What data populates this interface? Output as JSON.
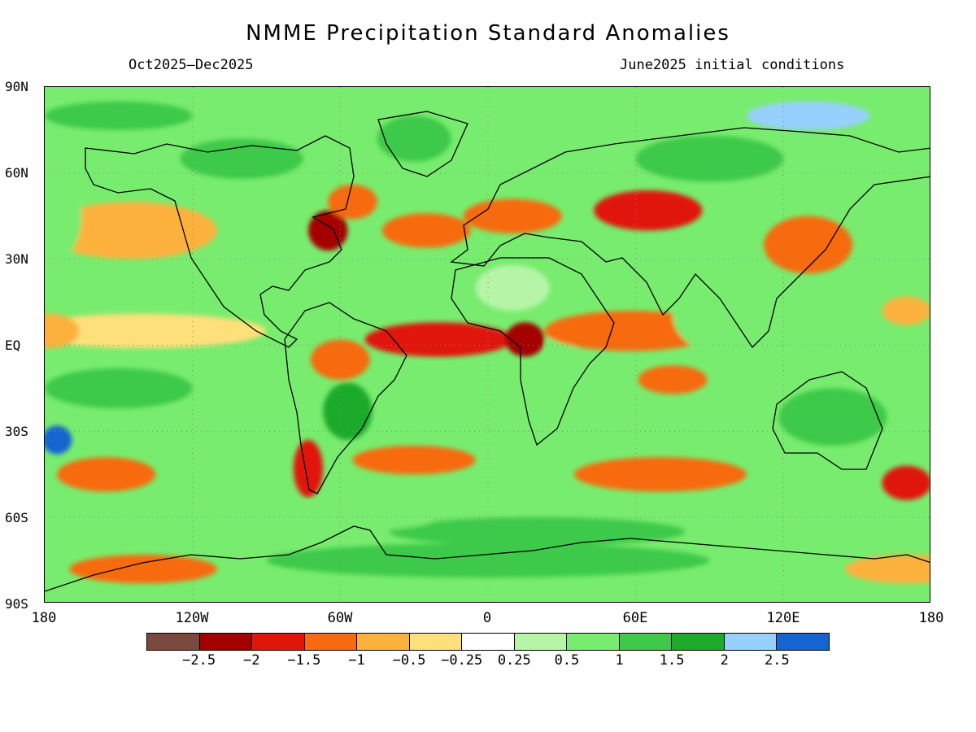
{
  "title": "NMME Precipitation Standard Anomalies",
  "subtitle_left": "Oct2025–Dec2025",
  "subtitle_right": "June2025 initial conditions",
  "lat_labels": [
    "90N",
    "60N",
    "30N",
    "EQ",
    "30S",
    "60S",
    "90S"
  ],
  "lon_labels": [
    "180",
    "120W",
    "60W",
    "0",
    "60E",
    "120E",
    "180"
  ],
  "colorbar": {
    "colors": [
      "#7a4a3e",
      "#a50000",
      "#e01608",
      "#f76a10",
      "#fcb13c",
      "#fee07a",
      "#ffffff",
      "#b6f5a8",
      "#78ec6e",
      "#3ec94a",
      "#1eaa2b",
      "#96d0fc",
      "#1464d2"
    ],
    "tick_labels": [
      "−2.5",
      "−2",
      "−1.5",
      "−1",
      "−0.5",
      "−0.25",
      "0.25",
      "0.5",
      "1",
      "1.5",
      "2",
      "2.5"
    ]
  },
  "chart_data": {
    "type": "heatmap",
    "title": "NMME Precipitation Standard Anomalies",
    "period": "Oct2025–Dec2025",
    "initial_conditions": "June2025 initial conditions",
    "projection": "equirectangular",
    "xlim": [
      -180,
      180
    ],
    "ylim": [
      -90,
      90
    ],
    "levels": [
      -2.5,
      -2,
      -1.5,
      -1,
      -0.5,
      -0.25,
      0.25,
      0.5,
      1,
      1.5,
      2,
      2.5
    ],
    "grid": true,
    "regions": [
      {
        "lon": -20,
        "lat": 2,
        "value": -2.0,
        "rlon": 30,
        "rlat": 6
      },
      {
        "lon": 15,
        "lat": 2,
        "value": -2.3,
        "rlon": 8,
        "rlat": 6
      },
      {
        "lon": 30,
        "lat": 1,
        "value": 0.6,
        "rlon": 6,
        "rlat": 8
      },
      {
        "lon": 58,
        "lat": 5,
        "value": -1.4,
        "rlon": 35,
        "rlat": 7
      },
      {
        "lon": 75,
        "lat": -12,
        "value": -1.5,
        "rlon": 14,
        "rlat": 5
      },
      {
        "lon": -65,
        "lat": 40,
        "value": -2.1,
        "rlon": 8,
        "rlat": 7
      },
      {
        "lon": -55,
        "lat": 50,
        "value": -1.3,
        "rlon": 10,
        "rlat": 6
      },
      {
        "lon": 65,
        "lat": 47,
        "value": -1.8,
        "rlon": 22,
        "rlat": 7
      },
      {
        "lon": 10,
        "lat": 45,
        "value": -1.2,
        "rlon": 20,
        "rlat": 6
      },
      {
        "lon": -25,
        "lat": 40,
        "value": -1.2,
        "rlon": 18,
        "rlat": 6
      },
      {
        "lon": 130,
        "lat": 35,
        "value": -1.3,
        "rlon": 18,
        "rlat": 10
      },
      {
        "lon": -145,
        "lat": 40,
        "value": -0.6,
        "rlon": 35,
        "rlat": 10
      },
      {
        "lon": -140,
        "lat": 5,
        "value": -0.5,
        "rlon": 50,
        "rlat": 6
      },
      {
        "lon": -178,
        "lat": 5,
        "value": -0.6,
        "rlon": 12,
        "rlat": 6
      },
      {
        "lon": -150,
        "lat": -15,
        "value": 1.1,
        "rlon": 30,
        "rlat": 7
      },
      {
        "lon": -175,
        "lat": -33,
        "value": 2.5,
        "rlon": 6,
        "rlat": 5
      },
      {
        "lon": -155,
        "lat": -45,
        "value": -1.4,
        "rlon": 20,
        "rlat": 6
      },
      {
        "lon": -73,
        "lat": -43,
        "value": -2.0,
        "rlon": 6,
        "rlat": 10
      },
      {
        "lon": -57,
        "lat": -23,
        "value": 1.5,
        "rlon": 10,
        "rlat": 10
      },
      {
        "lon": -60,
        "lat": -5,
        "value": -1.1,
        "rlon": 12,
        "rlat": 7
      },
      {
        "lon": -30,
        "lat": -40,
        "value": -1.4,
        "rlon": 25,
        "rlat": 5
      },
      {
        "lon": 70,
        "lat": -45,
        "value": -1.5,
        "rlon": 35,
        "rlat": 6
      },
      {
        "lon": 170,
        "lat": -48,
        "value": -1.6,
        "rlon": 10,
        "rlat": 6
      },
      {
        "lon": 140,
        "lat": -25,
        "value": 1.2,
        "rlon": 22,
        "rlat": 10
      },
      {
        "lon": 0,
        "lat": -75,
        "value": 1.3,
        "rlon": 90,
        "rlat": 6
      },
      {
        "lon": 20,
        "lat": -65,
        "value": 1.0,
        "rlon": 60,
        "rlat": 5
      },
      {
        "lon": -140,
        "lat": -78,
        "value": -1.5,
        "rlon": 30,
        "rlat": 5
      },
      {
        "lon": 170,
        "lat": -78,
        "value": -0.7,
        "rlon": 25,
        "rlat": 5
      },
      {
        "lon": 130,
        "lat": 80,
        "value": 2.3,
        "rlon": 25,
        "rlat": 5
      },
      {
        "lon": -150,
        "lat": 80,
        "value": 1.2,
        "rlon": 30,
        "rlat": 5
      },
      {
        "lon": 90,
        "lat": 65,
        "value": 1.0,
        "rlon": 30,
        "rlat": 8
      },
      {
        "lon": -100,
        "lat": 65,
        "value": 1.0,
        "rlon": 25,
        "rlat": 7
      },
      {
        "lon": -30,
        "lat": 72,
        "value": 1.0,
        "rlon": 15,
        "rlat": 8
      },
      {
        "lon": 105,
        "lat": 10,
        "value": 0.8,
        "rlon": 30,
        "rlat": 15
      },
      {
        "lon": 20,
        "lat": -20,
        "value": 0.7,
        "rlon": 12,
        "rlat": 10
      },
      {
        "lon": -20,
        "lat": -25,
        "value": 0.9,
        "rlon": 20,
        "rlat": 8
      },
      {
        "lon": -60,
        "lat": -60,
        "value": 0.9,
        "rlon": 40,
        "rlat": 5
      },
      {
        "lon": 170,
        "lat": 12,
        "value": -0.8,
        "rlon": 10,
        "rlat": 5
      },
      {
        "lon": -45,
        "lat": 20,
        "value": 0.8,
        "rlon": 20,
        "rlat": 10
      },
      {
        "lon": 10,
        "lat": 20,
        "value": 0.4,
        "rlon": 15,
        "rlat": 8
      },
      {
        "lon": -175,
        "lat": 45,
        "value": 0.8,
        "rlon": 10,
        "rlat": 15
      }
    ]
  }
}
